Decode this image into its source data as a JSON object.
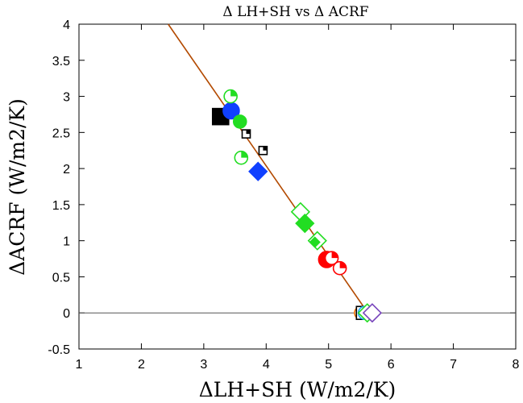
{
  "chart_data": {
    "type": "scatter",
    "title": "Δ LH+SH  vs  Δ ACRF",
    "xlabel": "ΔLH+SH (W/m2/K)",
    "ylabel": "ΔACRF (W/m2/K)",
    "xlim": [
      1,
      8
    ],
    "ylim": [
      -0.5,
      4
    ],
    "xticks": [
      "1",
      "2",
      "3",
      "4",
      "5",
      "6",
      "7",
      "8"
    ],
    "yticks": [
      "-0.5",
      "0",
      "0.5",
      "1",
      "1.5",
      "2",
      "2.5",
      "3",
      "3.5",
      "4"
    ],
    "grid": false,
    "legend": "none",
    "zero_line": {
      "y": 0,
      "color": "#555555"
    },
    "fit_line": {
      "color": "#b34a00",
      "x": [
        2.43,
        5.63
      ],
      "y": [
        4.0,
        0.0
      ]
    },
    "points": [
      {
        "x": 3.27,
        "y": 2.72,
        "marker": "square",
        "fill": "full",
        "color": "#000000",
        "size": "large"
      },
      {
        "x": 3.44,
        "y": 2.8,
        "marker": "circle",
        "fill": "full",
        "color": "#1040ff",
        "size": "large"
      },
      {
        "x": 3.43,
        "y": 3.0,
        "marker": "circle",
        "fill": "quarter",
        "color": "#22dd22",
        "size": "medium"
      },
      {
        "x": 3.58,
        "y": 2.65,
        "marker": "circle",
        "fill": "full",
        "color": "#22dd22",
        "size": "medium"
      },
      {
        "x": 3.68,
        "y": 2.48,
        "marker": "square",
        "fill": "quarter",
        "color": "#000000",
        "size": "small"
      },
      {
        "x": 3.95,
        "y": 2.25,
        "marker": "square",
        "fill": "quarter",
        "color": "#000000",
        "size": "small"
      },
      {
        "x": 3.6,
        "y": 2.15,
        "marker": "circle",
        "fill": "quarter",
        "color": "#22dd22",
        "size": "medium"
      },
      {
        "x": 3.87,
        "y": 1.96,
        "marker": "diamond",
        "fill": "full",
        "color": "#1040ff",
        "size": "large"
      },
      {
        "x": 4.55,
        "y": 1.45,
        "marker": "diamond",
        "fill": "full",
        "color": "#22dd22",
        "size": "small"
      },
      {
        "x": 4.55,
        "y": 1.4,
        "marker": "diamond",
        "fill": "none",
        "color": "#22dd22",
        "size": "large"
      },
      {
        "x": 4.62,
        "y": 1.24,
        "marker": "diamond",
        "fill": "full",
        "color": "#22dd22",
        "size": "large"
      },
      {
        "x": 4.82,
        "y": 1.0,
        "marker": "diamond",
        "fill": "none",
        "color": "#22dd22",
        "size": "large"
      },
      {
        "x": 4.78,
        "y": 0.98,
        "marker": "diamond",
        "fill": "full",
        "color": "#22dd22",
        "size": "small"
      },
      {
        "x": 4.97,
        "y": 0.74,
        "marker": "circle",
        "fill": "full",
        "color": "#ff0000",
        "size": "large"
      },
      {
        "x": 5.05,
        "y": 0.76,
        "marker": "circle",
        "fill": "quarter",
        "color": "#ff0000",
        "size": "medium"
      },
      {
        "x": 5.18,
        "y": 0.62,
        "marker": "circle",
        "fill": "quarter",
        "color": "#ff0000",
        "size": "medium"
      },
      {
        "x": 5.52,
        "y": 0.0,
        "marker": "circle",
        "fill": "none",
        "color": "#ff7700",
        "size": "medium"
      },
      {
        "x": 5.55,
        "y": 0.0,
        "marker": "square",
        "fill": "none",
        "color": "#000000",
        "size": "medium"
      },
      {
        "x": 5.58,
        "y": 0.0,
        "marker": "circle",
        "fill": "none",
        "color": "#22aaff",
        "size": "medium"
      },
      {
        "x": 5.62,
        "y": 0.0,
        "marker": "diamond",
        "fill": "none",
        "color": "#22dd22",
        "size": "large"
      },
      {
        "x": 5.7,
        "y": 0.0,
        "marker": "diamond",
        "fill": "none",
        "color": "#7744bb",
        "size": "large"
      }
    ]
  }
}
